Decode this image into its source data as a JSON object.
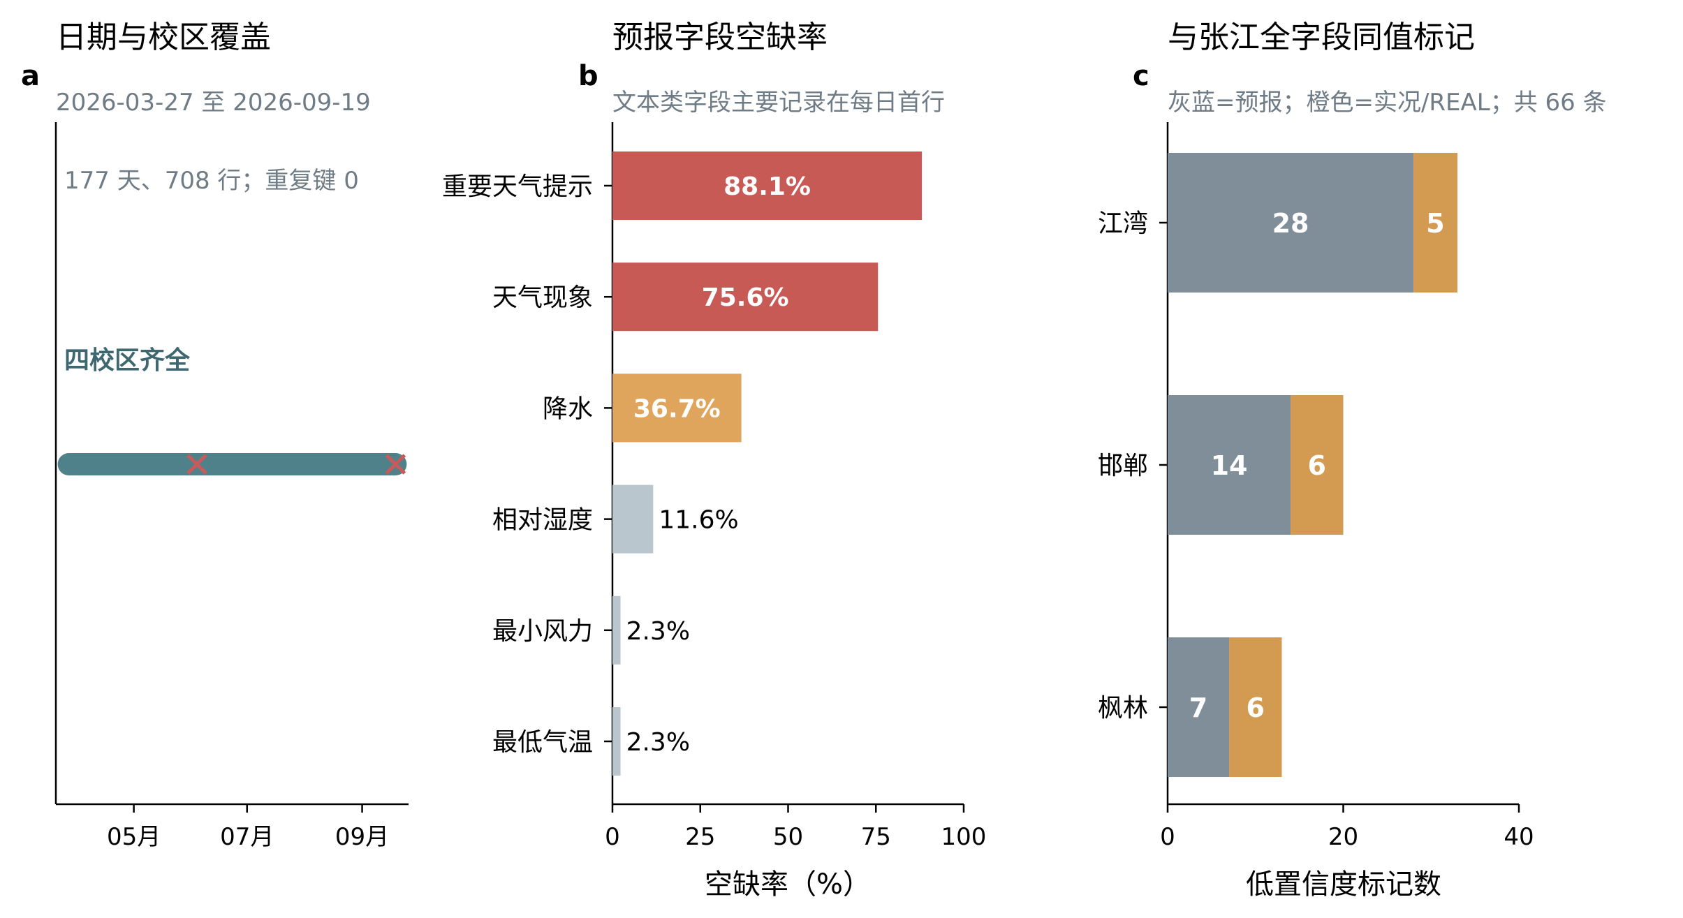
{
  "colors": {
    "coverage_line": "#4f818b",
    "marker_x": "#c85a5a",
    "text_dark": "#000000",
    "subtitle_gray": "#6f7c86",
    "coverage_note": "#3f6770",
    "bar_red": "#c85a56",
    "bar_orange": "#e0a55c",
    "bar_light": "#b9c6ce",
    "stack_forecast": "#7f8e99",
    "stack_actual": "#d39a52"
  },
  "panels": {
    "a": {
      "letter": "a",
      "title": "日期与校区覆盖",
      "subtitle": "2026-03-27 至 2026-09-19",
      "stats": "177 天、708 行；重复键 0",
      "note": "四校区齐全"
    },
    "b": {
      "letter": "b",
      "title": "预报字段空缺率",
      "subtitle": "文本类字段主要记录在每日首行"
    },
    "c": {
      "letter": "c",
      "title": "与张江全字段同值标记",
      "subtitle": "灰蓝=预报；橙色=实况/REAL；共 66 条"
    }
  },
  "chart_data": [
    {
      "panel": "a",
      "type": "line",
      "x_range": [
        "2026-03-27",
        "2026-09-19"
      ],
      "xlim": [
        "2026-03-20",
        "2026-09-26"
      ],
      "x_ticks": [
        {
          "date": "2026-05-01",
          "label": "05月"
        },
        {
          "date": "2026-07-01",
          "label": "07月"
        },
        {
          "date": "2026-09-01",
          "label": "09月"
        }
      ],
      "markers": [
        "2026-06-04",
        "2026-09-19"
      ],
      "marker_symbol": "x"
    },
    {
      "panel": "b",
      "type": "bar",
      "orientation": "horizontal",
      "categories": [
        "重要天气提示",
        "天气现象",
        "降水",
        "相对湿度",
        "最小风力",
        "最低气温"
      ],
      "values": [
        88.1,
        75.6,
        36.7,
        11.6,
        2.3,
        2.3
      ],
      "value_labels": [
        "88.1%",
        "75.6%",
        "36.7%",
        "11.6%",
        "2.3%",
        "2.3%"
      ],
      "color_keys": [
        "bar_red",
        "bar_red",
        "bar_orange",
        "bar_light",
        "bar_light",
        "bar_light"
      ],
      "xlabel": "空缺率（%）",
      "xlim": [
        0,
        100
      ],
      "x_ticks": [
        0,
        25,
        50,
        75,
        100
      ]
    },
    {
      "panel": "c",
      "type": "bar",
      "orientation": "horizontal",
      "stacked": true,
      "categories": [
        "江湾",
        "邯郸",
        "枫林"
      ],
      "series": [
        {
          "values": [
            28,
            14,
            7
          ],
          "color_key": "stack_forecast"
        },
        {
          "values": [
            5,
            6,
            6
          ],
          "color_key": "stack_actual"
        }
      ],
      "xlabel": "低置信度标记数",
      "xlim": [
        0,
        40
      ],
      "x_ticks": [
        0,
        20,
        40
      ]
    }
  ]
}
